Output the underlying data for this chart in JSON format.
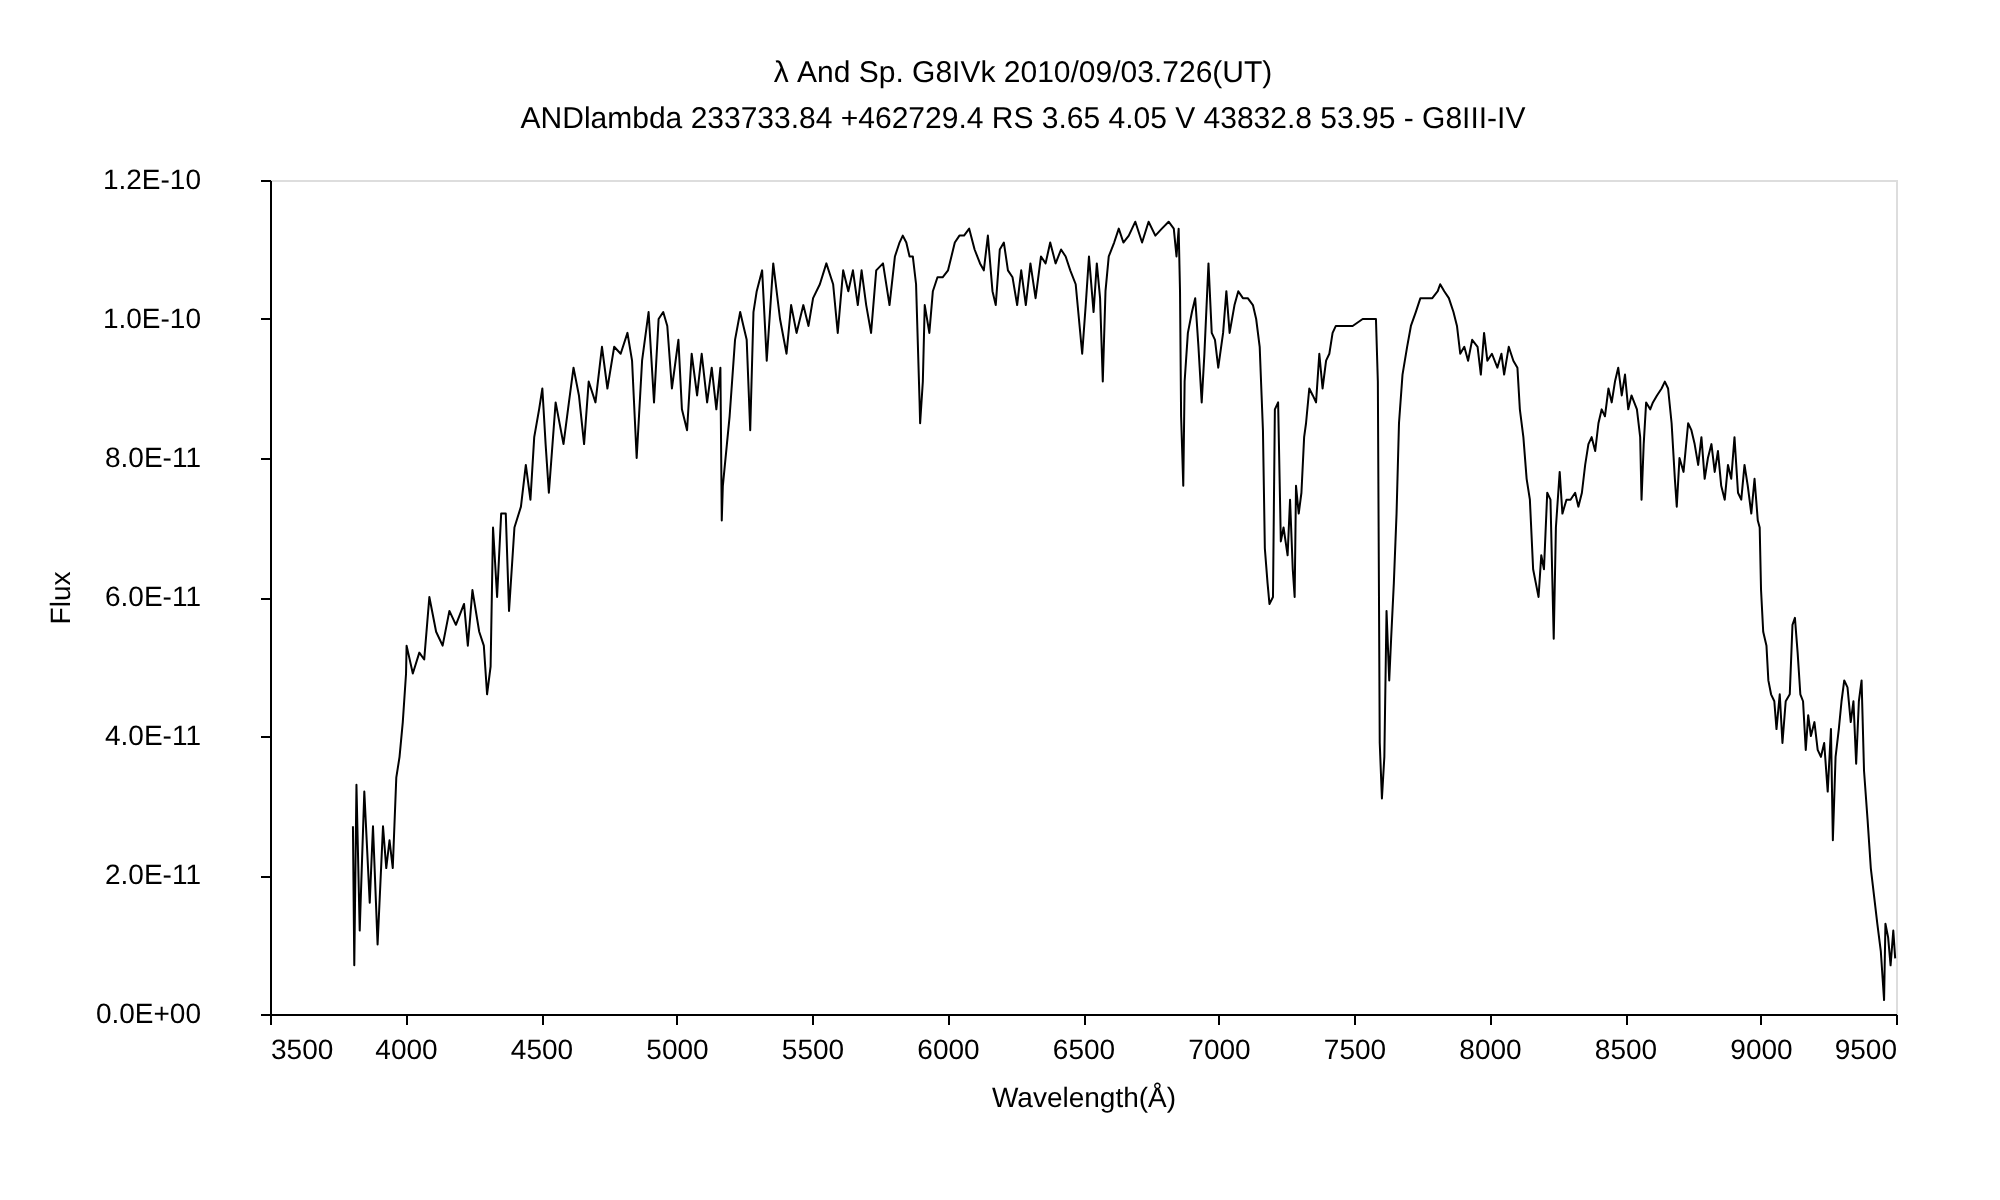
{
  "chart_data": {
    "type": "line",
    "title": "λ And   Sp. G8IVk   2010/09/03.726(UT)",
    "subtitle": "ANDlambda 233733.84 +462729.4 RS 3.65 4.05 V 43832.8 53.95 - G8III-IV",
    "xlabel": "Wavelength(Å)",
    "ylabel": "Flux",
    "color": "#000000",
    "marker": "none",
    "line_style": "solid",
    "grid": false,
    "xlim": [
      3500,
      9500
    ],
    "xticks": [
      3500,
      4000,
      4500,
      5000,
      5500,
      6000,
      6500,
      7000,
      7500,
      8000,
      8500,
      9000,
      9500
    ],
    "ylim": [
      0,
      1.2e-10
    ],
    "yticks": [
      {
        "value": 0,
        "label": "0.0E+00"
      },
      {
        "value": 2e-11,
        "label": "2.0E-11"
      },
      {
        "value": 4e-11,
        "label": "4.0E-11"
      },
      {
        "value": 6e-11,
        "label": "6.0E-11"
      },
      {
        "value": 8e-11,
        "label": "8.0E-11"
      },
      {
        "value": 1e-10,
        "label": "1.0E-10"
      },
      {
        "value": 1.2e-10,
        "label": "1.2E-10"
      }
    ],
    "x": [
      3806,
      3811,
      3819,
      3831,
      3848,
      3868,
      3880,
      3897,
      3917,
      3929,
      3941,
      3953,
      3966,
      3978,
      3990,
      4002,
      4004,
      4027,
      4051,
      4069,
      4088,
      4113,
      4137,
      4162,
      4186,
      4216,
      4230,
      4247,
      4272,
      4289,
      4301,
      4314,
      4323,
      4338,
      4353,
      4370,
      4382,
      4402,
      4426,
      4444,
      4461,
      4475,
      4493,
      4505,
      4517,
      4529,
      4554,
      4583,
      4603,
      4620,
      4640,
      4659,
      4676,
      4701,
      4725,
      4745,
      4770,
      4794,
      4819,
      4836,
      4853,
      4873,
      4897,
      4917,
      4934,
      4951,
      4966,
      4983,
      5007,
      5020,
      5039,
      5056,
      5076,
      5093,
      5113,
      5130,
      5147,
      5162,
      5167,
      5171,
      5186,
      5196,
      5216,
      5235,
      5247,
      5259,
      5272,
      5284,
      5296,
      5316,
      5333,
      5357,
      5382,
      5406,
      5423,
      5443,
      5468,
      5487,
      5504,
      5529,
      5553,
      5578,
      5595,
      5615,
      5634,
      5651,
      5669,
      5683,
      5700,
      5718,
      5737,
      5762,
      5786,
      5806,
      5823,
      5835,
      5848,
      5860,
      5872,
      5884,
      5897,
      5899,
      5909,
      5916,
      5933,
      5946,
      5963,
      5982,
      6002,
      6027,
      6044,
      6061,
      6080,
      6100,
      6120,
      6134,
      6149,
      6166,
      6178,
      6193,
      6208,
      6223,
      6240,
      6257,
      6272,
      6289,
      6306,
      6325,
      6345,
      6362,
      6379,
      6399,
      6419,
      6436,
      6453,
      6473,
      6485,
      6497,
      6510,
      6522,
      6539,
      6551,
      6563,
      6573,
      6583,
      6595,
      6615,
      6632,
      6649,
      6669,
      6693,
      6718,
      6742,
      6767,
      6791,
      6816,
      6835,
      6845,
      6853,
      6858,
      6862,
      6870,
      6875,
      6887,
      6902,
      6914,
      6926,
      6938,
      6948,
      6963,
      6975,
      6987,
      6999,
      7017,
      7029,
      7041,
      7059,
      7073,
      7090,
      7108,
      7127,
      7139,
      7152,
      7159,
      7164,
      7171,
      7181,
      7188,
      7201,
      7208,
      7220,
      7230,
      7240,
      7255,
      7264,
      7274,
      7281,
      7286,
      7296,
      7306,
      7316,
      7323,
      7335,
      7348,
      7360,
      7372,
      7384,
      7397,
      7409,
      7421,
      7433,
      7458,
      7495,
      7532,
      7563,
      7581,
      7588,
      7595,
      7603,
      7612,
      7620,
      7630,
      7637,
      7647,
      7657,
      7666,
      7679,
      7696,
      7710,
      7728,
      7745,
      7764,
      7789,
      7809,
      7818,
      7833,
      7850,
      7867,
      7880,
      7892,
      7907,
      7921,
      7936,
      7956,
      7968,
      7980,
      7992,
      8009,
      8029,
      8044,
      8054,
      8071,
      8088,
      8103,
      8112,
      8125,
      8137,
      8149,
      8161,
      8171,
      8181,
      8191,
      8201,
      8213,
      8225,
      8237,
      8245,
      8259,
      8269,
      8284,
      8299,
      8316,
      8328,
      8341,
      8353,
      8365,
      8377,
      8390,
      8402,
      8414,
      8426,
      8439,
      8451,
      8463,
      8475,
      8488,
      8500,
      8512,
      8524,
      8544,
      8556,
      8561,
      8569,
      8578,
      8593,
      8603,
      8618,
      8635,
      8647,
      8659,
      8672,
      8684,
      8691,
      8701,
      8716,
      8733,
      8745,
      8757,
      8770,
      8782,
      8794,
      8806,
      8819,
      8831,
      8843,
      8855,
      8868,
      8880,
      8892,
      8904,
      8917,
      8929,
      8941,
      8953,
      8966,
      8978,
      8990,
      8997,
      9002,
      9010,
      9022,
      9029,
      9039,
      9051,
      9059,
      9071,
      9081,
      9093,
      9108,
      9118,
      9127,
      9137,
      9147,
      9157,
      9167,
      9176,
      9186,
      9199,
      9211,
      9223,
      9235,
      9248,
      9260,
      9267,
      9277,
      9289,
      9299,
      9309,
      9321,
      9333,
      9343,
      9353,
      9363,
      9373,
      9382,
      9395,
      9407,
      9419,
      9431,
      9444,
      9456,
      9461,
      9471,
      9480,
      9490,
      9497
    ],
    "values": [
      2.7e-11,
      7e-12,
      3.3e-11,
      1.2e-11,
      3.2e-11,
      1.6e-11,
      2.7e-11,
      1e-11,
      2.7e-11,
      2.1e-11,
      2.5e-11,
      2.1e-11,
      3.4e-11,
      3.7e-11,
      4.2e-11,
      4.9e-11,
      5.3e-11,
      4.9e-11,
      5.2e-11,
      5.1e-11,
      6e-11,
      5.5e-11,
      5.3e-11,
      5.8e-11,
      5.6e-11,
      5.9e-11,
      5.3e-11,
      6.1e-11,
      5.5e-11,
      5.3e-11,
      4.6e-11,
      5e-11,
      7e-11,
      6e-11,
      7.2e-11,
      7.2e-11,
      5.8e-11,
      7e-11,
      7.3e-11,
      7.9e-11,
      7.4e-11,
      8.3e-11,
      8.7e-11,
      9e-11,
      8.2e-11,
      7.5e-11,
      8.8e-11,
      8.2e-11,
      8.8e-11,
      9.3e-11,
      8.9e-11,
      8.2e-11,
      9.1e-11,
      8.8e-11,
      9.6e-11,
      9e-11,
      9.6e-11,
      9.5e-11,
      9.8e-11,
      9.4e-11,
      8e-11,
      9.4e-11,
      1.01e-10,
      8.8e-11,
      1e-10,
      1.01e-10,
      9.9e-11,
      9e-11,
      9.7e-11,
      8.7e-11,
      8.4e-11,
      9.5e-11,
      8.9e-11,
      9.5e-11,
      8.8e-11,
      9.3e-11,
      8.7e-11,
      9.3e-11,
      7.1e-11,
      7.6e-11,
      8.2e-11,
      8.6e-11,
      9.7e-11,
      1.01e-10,
      9.9e-11,
      9.7e-11,
      8.4e-11,
      1.01e-10,
      1.04e-10,
      1.07e-10,
      9.4e-11,
      1.08e-10,
      1e-10,
      9.5e-11,
      1.02e-10,
      9.8e-11,
      1.02e-10,
      9.9e-11,
      1.03e-10,
      1.05e-10,
      1.08e-10,
      1.05e-10,
      9.8e-11,
      1.07e-10,
      1.04e-10,
      1.07e-10,
      1.02e-10,
      1.07e-10,
      1.02e-10,
      9.8e-11,
      1.07e-10,
      1.08e-10,
      1.02e-10,
      1.09e-10,
      1.11e-10,
      1.12e-10,
      1.11e-10,
      1.09e-10,
      1.09e-10,
      1.05e-10,
      8.8e-11,
      8.5e-11,
      9.1e-11,
      1.02e-10,
      9.8e-11,
      1.04e-10,
      1.06e-10,
      1.06e-10,
      1.07e-10,
      1.11e-10,
      1.12e-10,
      1.12e-10,
      1.13e-10,
      1.1e-10,
      1.08e-10,
      1.07e-10,
      1.12e-10,
      1.04e-10,
      1.02e-10,
      1.1e-10,
      1.11e-10,
      1.07e-10,
      1.06e-10,
      1.02e-10,
      1.07e-10,
      1.02e-10,
      1.08e-10,
      1.03e-10,
      1.09e-10,
      1.08e-10,
      1.11e-10,
      1.08e-10,
      1.1e-10,
      1.09e-10,
      1.07e-10,
      1.05e-10,
      1e-10,
      9.5e-11,
      1.02e-10,
      1.09e-10,
      1.01e-10,
      1.08e-10,
      1.03e-10,
      9.1e-11,
      1.04e-10,
      1.09e-10,
      1.11e-10,
      1.13e-10,
      1.11e-10,
      1.12e-10,
      1.14e-10,
      1.11e-10,
      1.14e-10,
      1.12e-10,
      1.13e-10,
      1.14e-10,
      1.13e-10,
      1.09e-10,
      1.13e-10,
      1.04e-10,
      8.6e-11,
      7.6e-11,
      9.1e-11,
      9.8e-11,
      1.01e-10,
      1.03e-10,
      9.6e-11,
      8.8e-11,
      9.5e-11,
      1.08e-10,
      9.8e-11,
      9.7e-11,
      9.3e-11,
      9.8e-11,
      1.04e-10,
      9.8e-11,
      1.02e-10,
      1.04e-10,
      1.03e-10,
      1.03e-10,
      1.02e-10,
      1e-10,
      9.6e-11,
      8.9e-11,
      8.4e-11,
      6.7e-11,
      6.2e-11,
      5.9e-11,
      6e-11,
      8.7e-11,
      8.8e-11,
      6.8e-11,
      7e-11,
      6.6e-11,
      7.4e-11,
      6.4e-11,
      6e-11,
      7.6e-11,
      7.2e-11,
      7.5e-11,
      8.3e-11,
      8.5e-11,
      9e-11,
      8.9e-11,
      8.8e-11,
      9.5e-11,
      9e-11,
      9.4e-11,
      9.5e-11,
      9.8e-11,
      9.9e-11,
      9.9e-11,
      9.9e-11,
      1e-10,
      1e-10,
      1e-10,
      9.1e-11,
      3.9e-11,
      3.1e-11,
      3.7e-11,
      5.8e-11,
      4.8e-11,
      5.4e-11,
      6.2e-11,
      7.2e-11,
      8.5e-11,
      9.2e-11,
      9.6e-11,
      9.9e-11,
      1.01e-10,
      1.03e-10,
      1.03e-10,
      1.03e-10,
      1.04e-10,
      1.05e-10,
      1.04e-10,
      1.03e-10,
      1.01e-10,
      9.9e-11,
      9.5e-11,
      9.6e-11,
      9.4e-11,
      9.7e-11,
      9.6e-11,
      9.2e-11,
      9.8e-11,
      9.4e-11,
      9.5e-11,
      9.3e-11,
      9.5e-11,
      9.2e-11,
      9.6e-11,
      9.4e-11,
      9.3e-11,
      8.7e-11,
      8.3e-11,
      7.7e-11,
      7.4e-11,
      6.4e-11,
      6.2e-11,
      6e-11,
      6.6e-11,
      6.4e-11,
      7.5e-11,
      7.4e-11,
      5.4e-11,
      7e-11,
      7.8e-11,
      7.2e-11,
      7.4e-11,
      7.4e-11,
      7.5e-11,
      7.3e-11,
      7.5e-11,
      7.9e-11,
      8.2e-11,
      8.3e-11,
      8.1e-11,
      8.5e-11,
      8.7e-11,
      8.6e-11,
      9e-11,
      8.8e-11,
      9.1e-11,
      9.3e-11,
      8.9e-11,
      9.2e-11,
      8.7e-11,
      8.9e-11,
      8.7e-11,
      8.3e-11,
      7.4e-11,
      8.2e-11,
      8.8e-11,
      8.7e-11,
      8.8e-11,
      8.9e-11,
      9e-11,
      9.1e-11,
      9e-11,
      8.5e-11,
      7.7e-11,
      7.3e-11,
      8e-11,
      7.8e-11,
      8.5e-11,
      8.4e-11,
      8.2e-11,
      7.9e-11,
      8.3e-11,
      7.7e-11,
      8e-11,
      8.2e-11,
      7.8e-11,
      8.1e-11,
      7.6e-11,
      7.4e-11,
      7.9e-11,
      7.7e-11,
      8.3e-11,
      7.5e-11,
      7.4e-11,
      7.9e-11,
      7.6e-11,
      7.2e-11,
      7.7e-11,
      7.1e-11,
      7e-11,
      6.1e-11,
      5.5e-11,
      5.3e-11,
      4.8e-11,
      4.6e-11,
      4.5e-11,
      4.1e-11,
      4.6e-11,
      3.9e-11,
      4.5e-11,
      4.6e-11,
      5.6e-11,
      5.7e-11,
      5.2e-11,
      4.6e-11,
      4.5e-11,
      3.8e-11,
      4.3e-11,
      4e-11,
      4.2e-11,
      3.8e-11,
      3.7e-11,
      3.9e-11,
      3.2e-11,
      4.1e-11,
      2.5e-11,
      3.7e-11,
      4.1e-11,
      4.5e-11,
      4.8e-11,
      4.7e-11,
      4.2e-11,
      4.5e-11,
      3.6e-11,
      4.5e-11,
      4.8e-11,
      3.5e-11,
      2.8e-11,
      2.1e-11,
      1.7e-11,
      1.3e-11,
      9e-12,
      2e-12,
      1.3e-11,
      1.1e-11,
      7e-12,
      1.2e-11,
      8e-12
    ]
  }
}
